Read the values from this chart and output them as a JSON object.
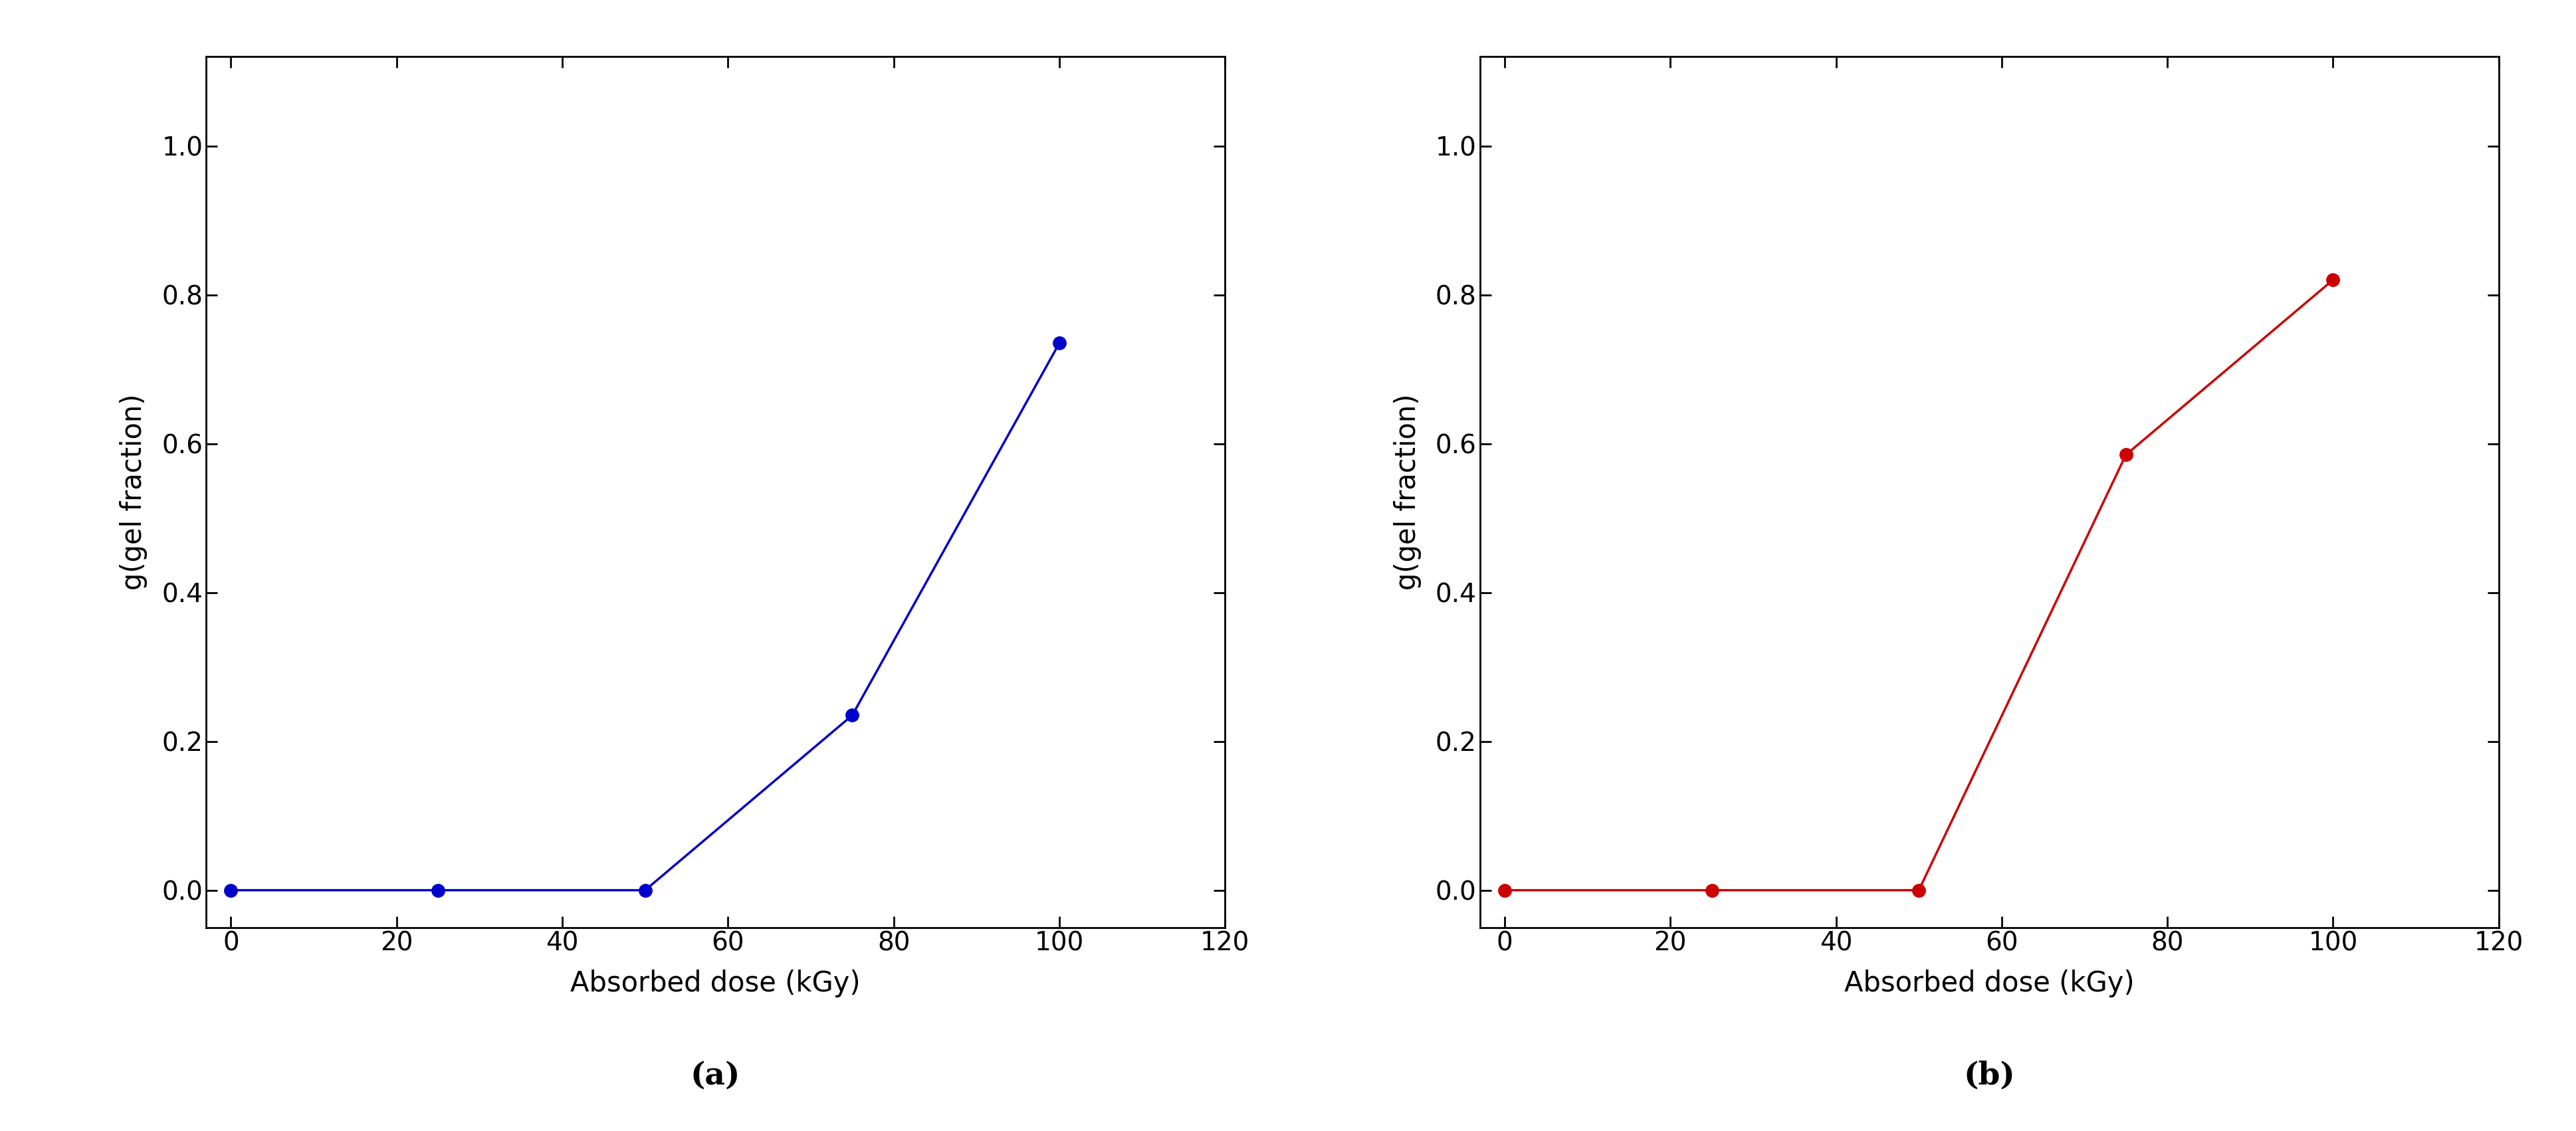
{
  "plot_a": {
    "x": [
      0,
      25,
      50,
      75,
      100
    ],
    "y": [
      0.0,
      0.0,
      0.0,
      0.235,
      0.735
    ],
    "color": "#0000CC",
    "marker": "o",
    "marker_size": 14,
    "linewidth": 2.5,
    "xlabel": "Absorbed dose (kGy)",
    "ylabel": "g(gel fraction)",
    "xlim": [
      -3,
      120
    ],
    "ylim": [
      -0.05,
      1.12
    ],
    "xticks": [
      0,
      20,
      40,
      60,
      80,
      100,
      120
    ],
    "yticks": [
      0.0,
      0.2,
      0.4,
      0.6,
      0.8,
      1.0
    ],
    "label": "(a)"
  },
  "plot_b": {
    "x": [
      0,
      25,
      50,
      75,
      100
    ],
    "y": [
      0.0,
      0.0,
      0.0,
      0.585,
      0.82
    ],
    "color": "#CC0000",
    "marker": "o",
    "marker_size": 14,
    "linewidth": 2.5,
    "xlabel": "Absorbed dose (kGy)",
    "ylabel": "g(gel fraction)",
    "xlim": [
      -3,
      120
    ],
    "ylim": [
      -0.05,
      1.12
    ],
    "xticks": [
      0,
      20,
      40,
      60,
      80,
      100,
      120
    ],
    "yticks": [
      0.0,
      0.2,
      0.4,
      0.6,
      0.8,
      1.0
    ],
    "label": "(b)"
  },
  "tick_fontsize": 28,
  "axis_label_fontsize": 30,
  "sublabel_fontsize": 34,
  "spine_linewidth": 2.0,
  "background_color": "#ffffff"
}
